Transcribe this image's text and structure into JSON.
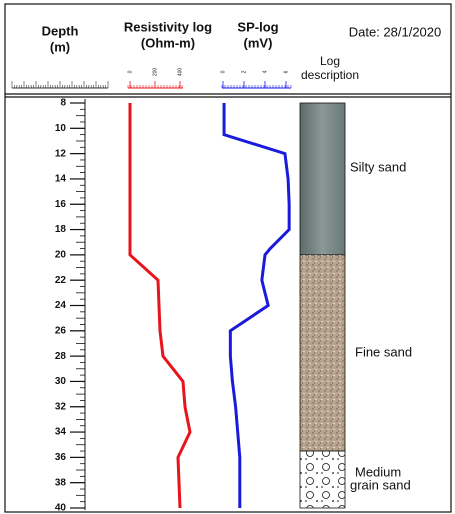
{
  "chart_data": {
    "type": "well-log",
    "date": "Date: 28/1/2020",
    "depth": {
      "title_lines": [
        "Depth",
        "(m)"
      ],
      "ylim": [
        8,
        40
      ],
      "yticks": [
        8,
        10,
        12,
        14,
        16,
        18,
        20,
        22,
        24,
        26,
        28,
        30,
        32,
        34,
        36,
        38,
        40
      ]
    },
    "series": [
      {
        "name": "Resistivity log",
        "unit": "(Ohm-m)",
        "color": "#e8141c",
        "xlim": [
          0,
          400
        ],
        "xticks": [
          0,
          200,
          400
        ],
        "depths": [
          8,
          20,
          22,
          26,
          28,
          30,
          32,
          34,
          36,
          40
        ],
        "values": [
          0,
          0,
          224,
          240,
          264,
          424,
          440,
          480,
          384,
          400
        ]
      },
      {
        "name": "SP-log",
        "unit": "(mV)",
        "color": "#1a1adc",
        "xlim": [
          0,
          6
        ],
        "xticks": [
          0,
          2,
          4,
          6
        ],
        "depths": [
          8,
          10.5,
          12,
          14,
          16,
          18,
          19.5,
          20,
          22,
          24,
          26,
          28,
          30,
          32,
          34,
          36,
          40
        ],
        "values": [
          0.1,
          0.1,
          5.9,
          6.2,
          6.3,
          6.3,
          4.5,
          4.0,
          3.7,
          4.3,
          0.7,
          0.7,
          0.9,
          1.2,
          1.4,
          1.6,
          1.6
        ]
      }
    ],
    "lithology_title_lines": [
      "Log",
      "description"
    ],
    "lithology": [
      {
        "name": "Silty sand",
        "top": 8,
        "bottom": 20,
        "color": "#7f8d8d"
      },
      {
        "name": "Fine sand",
        "top": 20,
        "bottom": 35.5,
        "color": "#b8a48e"
      },
      {
        "name": "Medium grain sand",
        "top": 35.5,
        "bottom": 40,
        "color": "#ffffff"
      }
    ]
  }
}
